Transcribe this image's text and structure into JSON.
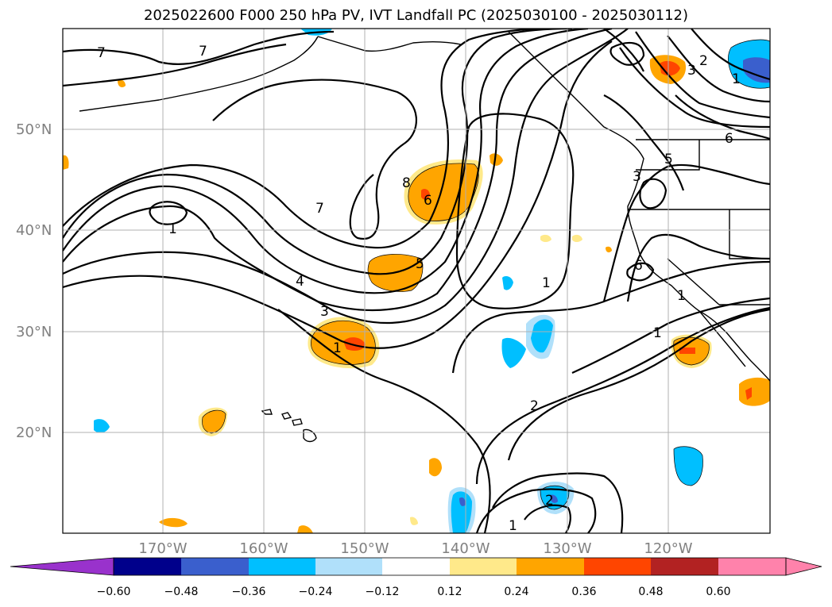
{
  "title": "2025022600 F000 250 hPa PV, IVT Landfall PC (2025030100 - 2025030112)",
  "map": {
    "lat_labels": [
      "50°N",
      "40°N",
      "30°N",
      "20°N"
    ],
    "lon_labels": [
      "170°W",
      "160°W",
      "150°W",
      "140°W",
      "130°W",
      "120°W"
    ],
    "contour_labels": [
      "7",
      "7",
      "1",
      "7",
      "8",
      "6",
      "5",
      "4",
      "3",
      "1",
      "1",
      "2",
      "1",
      "1",
      "6",
      "3",
      "5",
      "6",
      "3",
      "2",
      "2",
      "1",
      "1"
    ],
    "colors": {
      "ocean": "#ffffff",
      "grid": "#b0b0b0",
      "contour": "#000000",
      "orange": "#ffa500",
      "red_orange": "#ff4500",
      "light_yellow": "#ffe98a",
      "deep_sky_blue": "#00bfff",
      "light_blue": "#b0e0fa",
      "royal_blue": "#3a5fcd"
    }
  },
  "colorbar": {
    "ticks": [
      "−0.60",
      "−0.48",
      "−0.36",
      "−0.24",
      "−0.12",
      "0.12",
      "0.24",
      "0.36",
      "0.48",
      "0.60"
    ],
    "colors": [
      "#9932cc",
      "#00008b",
      "#3a5fcd",
      "#00bfff",
      "#b0e0fa",
      "#ffffff",
      "#ffe98a",
      "#ffa500",
      "#ff4500",
      "#b22222",
      "#ff82ab",
      "#ff82ab"
    ]
  }
}
